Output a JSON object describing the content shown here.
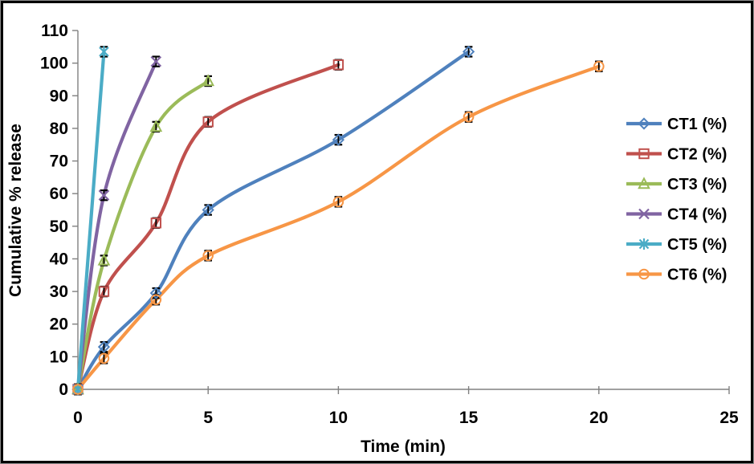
{
  "figure": {
    "background": "#ffffff",
    "frame_border_color": "#000000",
    "frame_outline_color": "#8c8c8c",
    "axis_line_color": "#808080",
    "error_bar_color": "#000000"
  },
  "chart_data": {
    "type": "line",
    "title": "",
    "xlabel": "Time (min)",
    "ylabel": "Cumulative % release",
    "xlim": [
      0,
      25
    ],
    "ylim": [
      0,
      110
    ],
    "x_ticks": [
      0,
      5,
      10,
      15,
      20,
      25
    ],
    "y_ticks": [
      0,
      10,
      20,
      30,
      40,
      50,
      60,
      70,
      80,
      90,
      100,
      110
    ],
    "grid": false,
    "smooth_lines": true,
    "legend_position": "right",
    "error_bar_halfwidth": 1.5,
    "series": [
      {
        "name": "CT1 (%)",
        "color": "#4f81bd",
        "marker": "diamond",
        "x": [
          0,
          1,
          3,
          5,
          10,
          15
        ],
        "values": [
          0,
          13,
          29.5,
          55,
          76.5,
          103.5
        ]
      },
      {
        "name": "CT2 (%)",
        "color": "#c0504d",
        "marker": "square",
        "x": [
          0,
          1,
          3,
          5,
          10
        ],
        "values": [
          0,
          30,
          51,
          82,
          99.5
        ]
      },
      {
        "name": "CT3 (%)",
        "color": "#9bbb59",
        "marker": "triangle",
        "x": [
          0,
          1,
          3,
          5
        ],
        "values": [
          0,
          39.5,
          80.5,
          94.5
        ]
      },
      {
        "name": "CT4 (%)",
        "color": "#8064a2",
        "marker": "x",
        "x": [
          0,
          1,
          3
        ],
        "values": [
          0,
          59.5,
          100.5
        ]
      },
      {
        "name": "CT5 (%)",
        "color": "#4bacc6",
        "marker": "star",
        "x": [
          0,
          1
        ],
        "values": [
          0,
          103.5
        ]
      },
      {
        "name": "CT6 (%)",
        "color": "#f79646",
        "marker": "circle",
        "x": [
          0,
          1,
          3,
          5,
          10,
          15,
          20
        ],
        "values": [
          0,
          9.5,
          27.5,
          41,
          57.5,
          83.5,
          99
        ]
      }
    ]
  }
}
